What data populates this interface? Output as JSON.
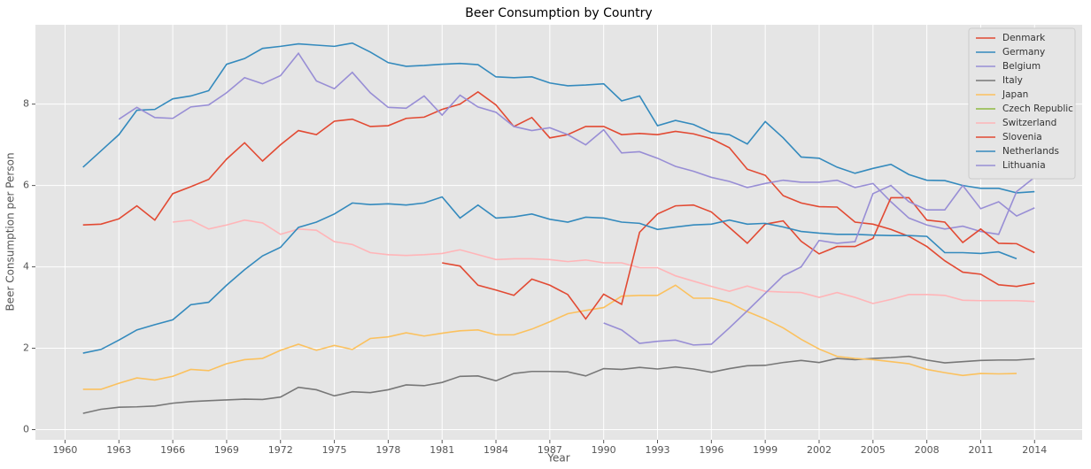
{
  "chart_data": {
    "type": "line",
    "title": "Beer Consumption by Country",
    "x_label": "Year",
    "y_label": "Beer Consumption per Person",
    "x": [
      1961,
      1962,
      1963,
      1964,
      1965,
      1966,
      1967,
      1968,
      1969,
      1970,
      1971,
      1972,
      1973,
      1974,
      1975,
      1976,
      1977,
      1978,
      1979,
      1980,
      1981,
      1982,
      1983,
      1984,
      1985,
      1986,
      1987,
      1988,
      1989,
      1990,
      1991,
      1992,
      1993,
      1994,
      1995,
      1996,
      1997,
      1998,
      1999,
      2000,
      2001,
      2002,
      2003,
      2004,
      2005,
      2006,
      2007,
      2008,
      2009,
      2010,
      2011,
      2012,
      2013,
      2014
    ],
    "series": [
      {
        "name": "Denmark",
        "color": "#E24A33",
        "values": [
          5.03,
          5.05,
          5.18,
          5.5,
          5.15,
          5.8,
          5.97,
          6.15,
          6.65,
          7.05,
          6.6,
          7.0,
          7.35,
          7.25,
          7.58,
          7.63,
          7.45,
          7.47,
          7.65,
          7.68,
          7.87,
          8.0,
          8.3,
          7.98,
          7.45,
          7.67,
          7.17,
          7.25,
          7.45,
          7.45,
          7.25,
          7.28,
          7.25,
          7.33,
          7.27,
          7.15,
          6.93,
          6.4,
          6.25,
          5.75,
          5.57,
          5.48,
          5.47,
          5.1,
          5.05,
          4.92,
          4.75,
          4.5,
          4.15,
          3.87,
          3.82,
          3.56,
          3.52,
          3.6
        ]
      },
      {
        "name": "Germany",
        "color": "#348ABD",
        "values": [
          6.45,
          6.85,
          7.25,
          7.85,
          7.87,
          8.13,
          8.2,
          8.33,
          8.98,
          9.12,
          9.37,
          9.42,
          9.48,
          9.45,
          9.42,
          9.5,
          9.28,
          9.02,
          8.93,
          8.95,
          8.98,
          9.0,
          8.97,
          8.67,
          8.65,
          8.67,
          8.52,
          8.45,
          8.47,
          8.5,
          8.08,
          8.2,
          7.47,
          7.6,
          7.5,
          7.3,
          7.25,
          7.02,
          7.57,
          7.17,
          6.7,
          6.67,
          6.45,
          6.3,
          6.42,
          6.52,
          6.27,
          6.13,
          6.12,
          6.0,
          5.93,
          5.93,
          5.82,
          5.85
        ]
      },
      {
        "name": "Belgium",
        "color": "#988ED5",
        "values": [
          null,
          null,
          7.63,
          7.92,
          7.67,
          7.65,
          7.93,
          7.98,
          8.28,
          8.65,
          8.5,
          8.7,
          9.25,
          8.57,
          8.38,
          8.78,
          8.28,
          7.92,
          7.9,
          8.2,
          7.73,
          8.22,
          7.93,
          7.8,
          7.45,
          7.35,
          7.42,
          7.25,
          7.0,
          7.37,
          6.8,
          6.83,
          6.67,
          6.47,
          6.35,
          6.2,
          6.1,
          5.95,
          6.05,
          6.13,
          6.08,
          6.08,
          6.13,
          5.95,
          6.05,
          5.6,
          5.2,
          5.03,
          4.93,
          5.0,
          4.87,
          4.8,
          5.85,
          6.2
        ]
      },
      {
        "name": "Italy",
        "color": "#777777",
        "values": [
          0.4,
          0.5,
          0.55,
          0.56,
          0.58,
          0.65,
          0.69,
          0.71,
          0.73,
          0.75,
          0.74,
          0.8,
          1.04,
          0.98,
          0.83,
          0.93,
          0.91,
          0.98,
          1.1,
          1.08,
          1.16,
          1.31,
          1.32,
          1.2,
          1.38,
          1.43,
          1.43,
          1.42,
          1.32,
          1.5,
          1.48,
          1.53,
          1.49,
          1.54,
          1.49,
          1.41,
          1.5,
          1.57,
          1.58,
          1.65,
          1.7,
          1.65,
          1.75,
          1.72,
          1.75,
          1.77,
          1.8,
          1.71,
          1.64,
          1.67,
          1.7,
          1.71,
          1.71,
          1.74
        ]
      },
      {
        "name": "Japan",
        "color": "#FBC15E",
        "values": [
          0.99,
          0.99,
          1.14,
          1.27,
          1.22,
          1.31,
          1.48,
          1.45,
          1.62,
          1.72,
          1.75,
          1.95,
          2.1,
          1.95,
          2.07,
          1.97,
          2.24,
          2.28,
          2.38,
          2.3,
          2.37,
          2.43,
          2.45,
          2.33,
          2.33,
          2.47,
          2.65,
          2.85,
          2.93,
          3.0,
          3.28,
          3.3,
          3.3,
          3.55,
          3.23,
          3.23,
          3.12,
          2.9,
          2.72,
          2.5,
          2.22,
          1.98,
          1.8,
          1.75,
          1.72,
          1.67,
          1.62,
          1.48,
          1.4,
          1.33,
          1.38,
          1.37,
          1.38,
          null
        ]
      },
      {
        "name": "Czech Republic",
        "color": "#8EBA42",
        "values": [
          null,
          null,
          null,
          null,
          null,
          null,
          null,
          null,
          null,
          null,
          null,
          null,
          null,
          null,
          null,
          null,
          null,
          null,
          null,
          null,
          null,
          null,
          null,
          null,
          null,
          null,
          null,
          null,
          null,
          null,
          null,
          null,
          null,
          null,
          null,
          null,
          null,
          null,
          null,
          null,
          null,
          null,
          null,
          null,
          null,
          null,
          null,
          null,
          null,
          null,
          null,
          null,
          null,
          null
        ]
      },
      {
        "name": "Switzerland",
        "color": "#FFB5B8",
        "values": [
          null,
          null,
          null,
          null,
          null,
          5.1,
          5.15,
          4.93,
          5.03,
          5.15,
          5.08,
          4.8,
          4.93,
          4.9,
          4.62,
          4.55,
          4.35,
          4.3,
          4.28,
          4.3,
          4.33,
          4.42,
          4.3,
          4.18,
          4.2,
          4.2,
          4.18,
          4.13,
          4.17,
          4.1,
          4.1,
          3.98,
          3.98,
          3.78,
          3.65,
          3.52,
          3.4,
          3.53,
          3.4,
          3.38,
          3.37,
          3.25,
          3.37,
          3.25,
          3.1,
          3.2,
          3.32,
          3.32,
          3.3,
          3.18,
          3.17,
          3.17,
          3.17,
          3.15
        ]
      },
      {
        "name": "Slovenia",
        "color": "#E24A33",
        "values": [
          null,
          null,
          null,
          null,
          null,
          null,
          null,
          null,
          null,
          null,
          null,
          null,
          null,
          null,
          null,
          null,
          null,
          null,
          null,
          null,
          4.1,
          4.02,
          3.55,
          3.43,
          3.3,
          3.7,
          3.55,
          3.32,
          2.72,
          3.33,
          3.08,
          4.85,
          5.3,
          5.5,
          5.52,
          5.35,
          4.97,
          4.58,
          5.05,
          5.13,
          4.63,
          4.32,
          4.5,
          4.5,
          4.7,
          5.7,
          5.7,
          5.15,
          5.1,
          4.6,
          4.93,
          4.58,
          4.57,
          4.35
        ]
      },
      {
        "name": "Netherlands",
        "color": "#348ABD",
        "values": [
          1.88,
          1.97,
          2.2,
          2.45,
          2.58,
          2.7,
          3.07,
          3.13,
          3.55,
          3.93,
          4.27,
          4.48,
          4.97,
          5.1,
          5.3,
          5.57,
          5.53,
          5.55,
          5.52,
          5.57,
          5.72,
          5.2,
          5.52,
          5.2,
          5.23,
          5.3,
          5.17,
          5.1,
          5.22,
          5.2,
          5.1,
          5.07,
          4.92,
          4.98,
          5.03,
          5.05,
          5.15,
          5.05,
          5.07,
          4.98,
          4.87,
          4.83,
          4.8,
          4.8,
          4.78,
          4.77,
          4.77,
          4.75,
          4.35,
          4.35,
          4.33,
          4.37,
          4.2,
          null
        ]
      },
      {
        "name": "Lithuania",
        "color": "#988ED5",
        "values": [
          null,
          null,
          null,
          null,
          null,
          null,
          null,
          null,
          null,
          null,
          null,
          null,
          null,
          null,
          null,
          null,
          null,
          null,
          null,
          null,
          null,
          null,
          null,
          null,
          null,
          null,
          null,
          null,
          null,
          2.62,
          2.45,
          2.12,
          2.17,
          2.2,
          2.08,
          2.1,
          2.5,
          2.92,
          3.35,
          3.78,
          4.0,
          4.65,
          4.58,
          4.62,
          5.8,
          6.0,
          5.6,
          5.4,
          5.4,
          6.0,
          5.43,
          5.6,
          5.25,
          5.45
        ]
      }
    ],
    "xlim": [
      1958.35,
      2016.65
    ],
    "xticks": [
      1960,
      1963,
      1966,
      1969,
      1972,
      1975,
      1978,
      1981,
      1984,
      1987,
      1990,
      1993,
      1996,
      1999,
      2002,
      2005,
      2008,
      2011,
      2014
    ],
    "ylim": [
      -0.25,
      9.95
    ],
    "yticks": [
      0,
      2,
      4,
      6,
      8
    ],
    "grid": true,
    "legend": "upper right"
  }
}
